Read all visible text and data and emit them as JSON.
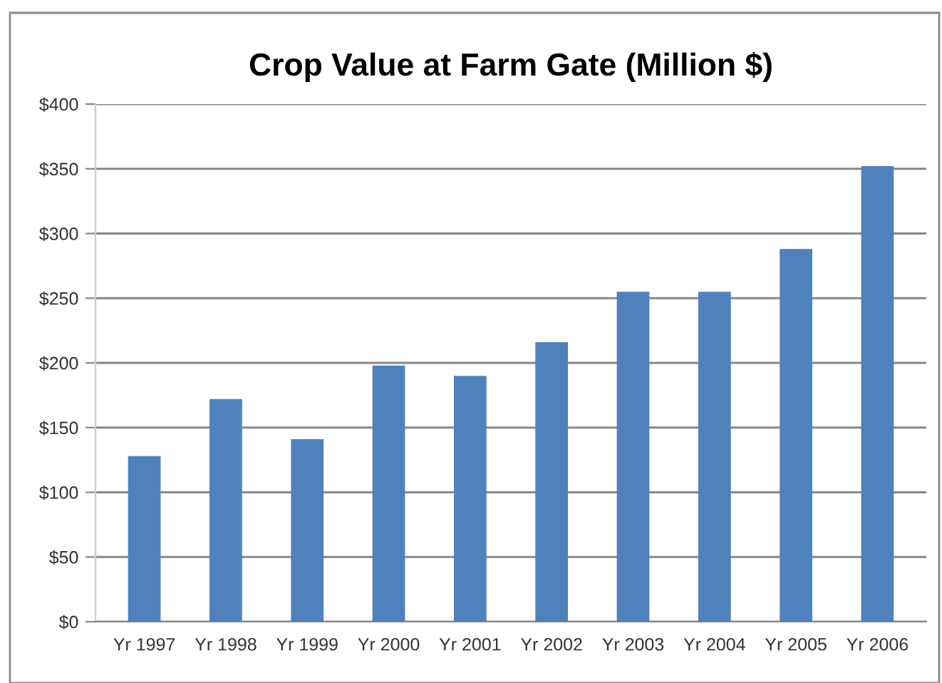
{
  "chart_data": {
    "type": "bar",
    "title": "Crop Value at Farm Gate (Million $)",
    "categories": [
      "Yr 1997",
      "Yr 1998",
      "Yr 1999",
      "Yr 2000",
      "Yr 2001",
      "Yr 2002",
      "Yr 2003",
      "Yr 2004",
      "Yr 2005",
      "Yr 2006"
    ],
    "values": [
      128,
      172,
      141,
      198,
      190,
      216,
      255,
      255,
      288,
      352
    ],
    "color": "#4f81bd",
    "ylim": [
      0,
      400
    ],
    "yticks": [
      {
        "value": 0,
        "label": "$0"
      },
      {
        "value": 50,
        "label": "$50"
      },
      {
        "value": 100,
        "label": "$100"
      },
      {
        "value": 150,
        "label": "$150"
      },
      {
        "value": 200,
        "label": "$200"
      },
      {
        "value": 250,
        "label": "$250"
      },
      {
        "value": 300,
        "label": "$300"
      },
      {
        "value": 350,
        "label": "$350"
      },
      {
        "value": 400,
        "label": "$400"
      }
    ],
    "grid": "y"
  }
}
